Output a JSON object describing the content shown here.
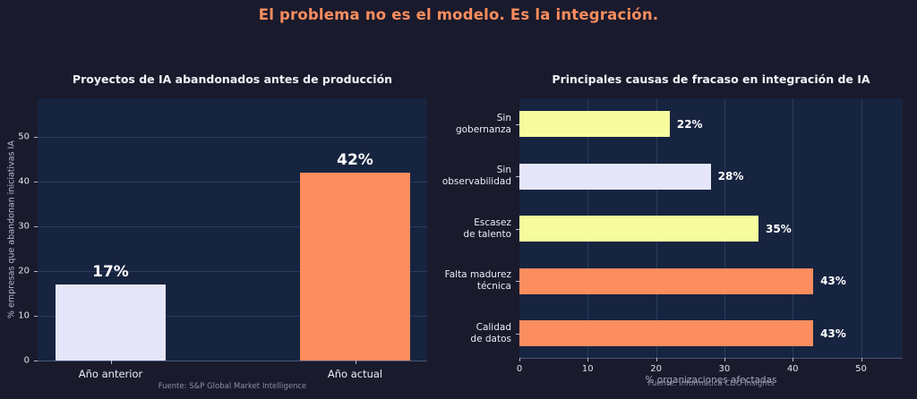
{
  "page": {
    "title": "El problema no es el modelo. Es la integración.",
    "background": "#191A2C",
    "title_color": "#FC8D5E"
  },
  "palette": {
    "coral": "#FC8D5E",
    "lavender": "#E5E6FA",
    "yellow": "#F6FC9E",
    "plot_background": "#172440",
    "gridline": "#2B3A5E"
  },
  "chart_data": [
    {
      "id": "proyectos-abandonados",
      "type": "bar",
      "title": "Proyectos de IA abandonados antes de producción",
      "categories": [
        "Año anterior",
        "Año actual"
      ],
      "values": [
        17,
        42
      ],
      "value_labels": [
        "17%",
        "42%"
      ],
      "bar_colors": [
        "#E5E6FA",
        "#FC8D5E"
      ],
      "xlabel": "",
      "ylabel": "% empresas que abandonan iniciativas IA",
      "yticks": [
        0,
        10,
        20,
        30,
        40,
        50
      ],
      "ylim": [
        0,
        58.6
      ],
      "grid": "horizontal",
      "legend": "none",
      "source": "Fuente: S&P Global Market Intelligence"
    },
    {
      "id": "causas-fracaso",
      "type": "bar-horizontal",
      "title": "Principales causas de fracaso en integración de IA",
      "categories": [
        "Sin gobernanza",
        "Sin observabilidad",
        "Escasez de talento",
        "Falta madurez técnica",
        "Calidad de datos"
      ],
      "category_lines": [
        [
          "Sin",
          "gobernanza"
        ],
        [
          "Sin",
          "observabilidad"
        ],
        [
          "Escasez",
          "de talento"
        ],
        [
          "Falta madurez",
          "técnica"
        ],
        [
          "Calidad",
          "de datos"
        ]
      ],
      "values": [
        22,
        28,
        35,
        43,
        43
      ],
      "value_labels": [
        "22%",
        "28%",
        "35%",
        "43%",
        "43%"
      ],
      "bar_colors": [
        "#F6FC9E",
        "#E5E6FA",
        "#F6FC9E",
        "#FC8D5E",
        "#FC8D5E"
      ],
      "xlabel": "% organizaciones afectadas",
      "ylabel": "",
      "xticks": [
        0,
        10,
        20,
        30,
        40,
        50
      ],
      "xlim": [
        0,
        56
      ],
      "grid": "vertical",
      "legend": "none",
      "source": "Fuente: Informatica CDO Insights"
    }
  ]
}
